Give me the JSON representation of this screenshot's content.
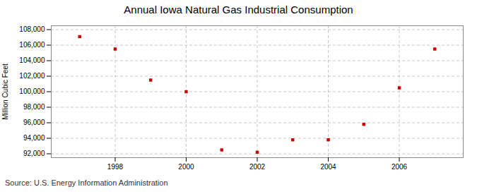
{
  "chart_data": {
    "type": "scatter",
    "title": "Annual Iowa Natural Gas Industrial Consumption",
    "ylabel": "Million Cubic Feet",
    "annotations": [
      "Source: U.S. Energy Information Administration"
    ],
    "x": [
      1997,
      1998,
      1999,
      2000,
      2001,
      2002,
      2003,
      2004,
      2005,
      2006,
      2007
    ],
    "values": [
      107100,
      105500,
      101500,
      100000,
      92500,
      92200,
      93800,
      93800,
      95800,
      100500,
      105500
    ],
    "color": "#cc0000",
    "marker": "square",
    "xlim": [
      1996.2,
      2007.8
    ],
    "xticks": [
      1998,
      2000,
      2002,
      2004,
      2006
    ],
    "ylim": [
      91500,
      108500
    ],
    "yticks": [
      {
        "value": 92000,
        "label": "92,000"
      },
      {
        "value": 94000,
        "label": "94,000"
      },
      {
        "value": 96000,
        "label": "96,000"
      },
      {
        "value": 98000,
        "label": "98,000"
      },
      {
        "value": 100000,
        "label": "100,000"
      },
      {
        "value": 102000,
        "label": "102,000"
      },
      {
        "value": 104000,
        "label": "104,000"
      },
      {
        "value": 106000,
        "label": "106,000"
      },
      {
        "value": 108000,
        "label": "108,000"
      }
    ],
    "grid": true
  }
}
